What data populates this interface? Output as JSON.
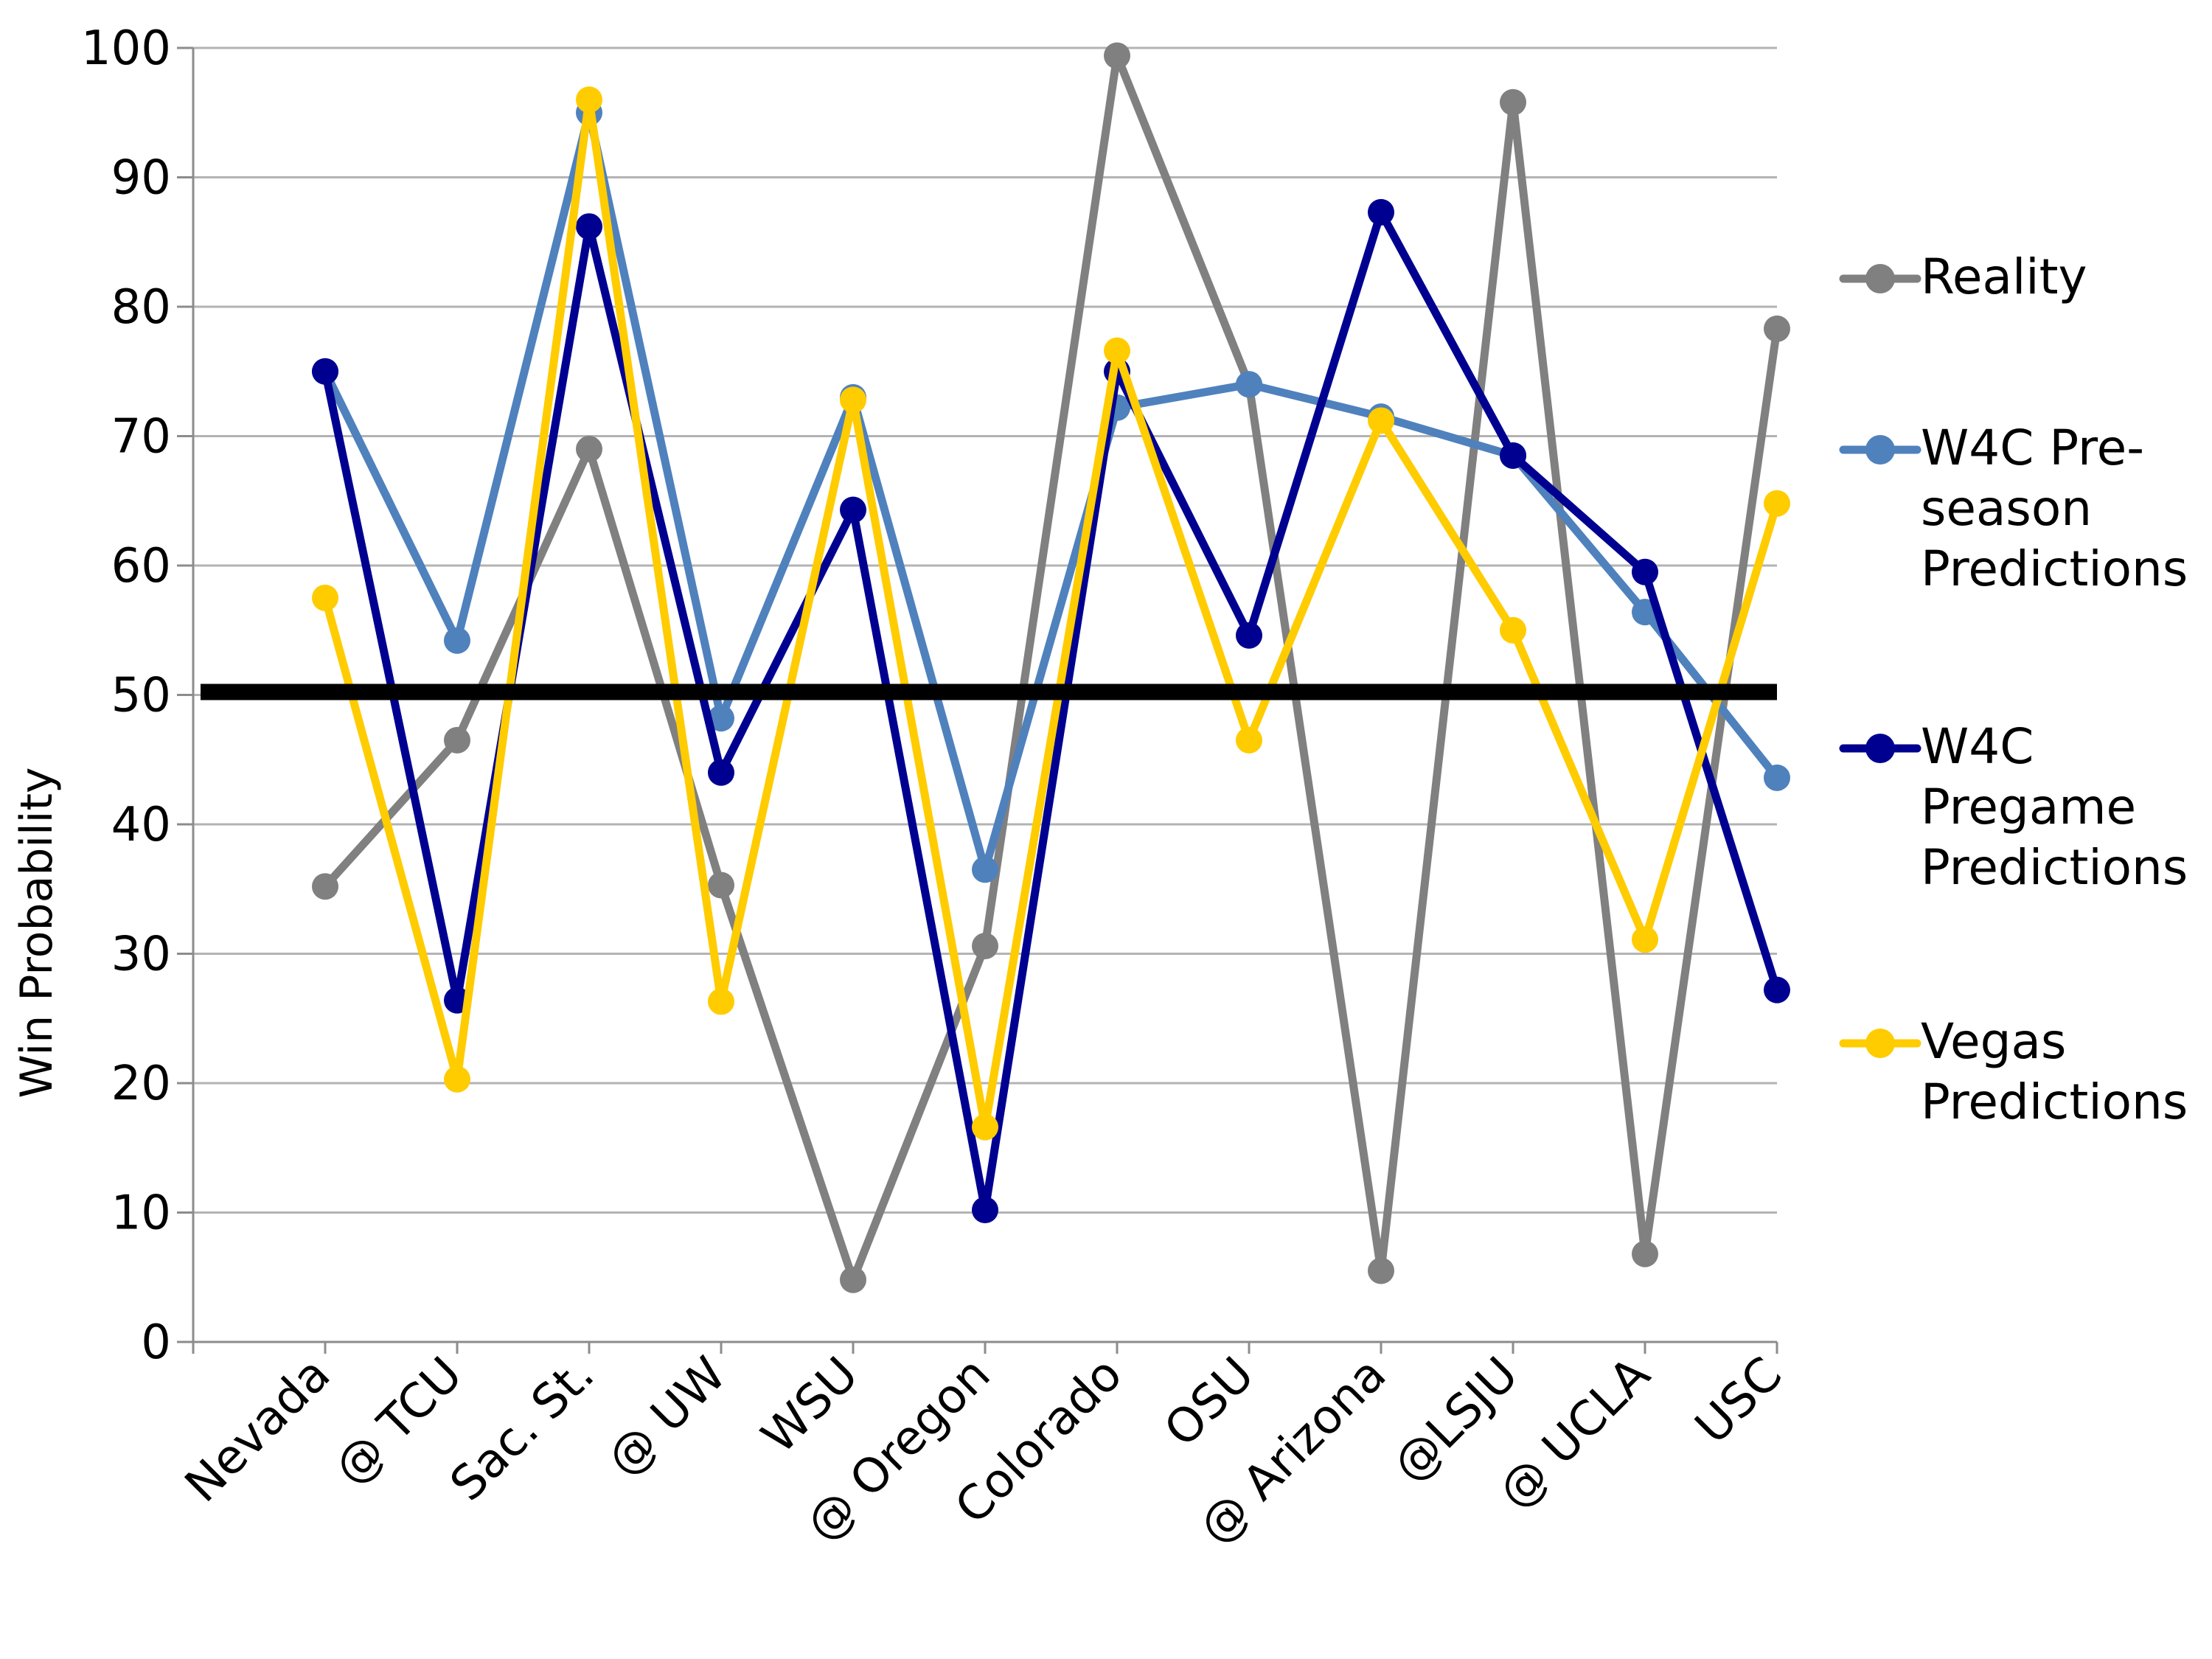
{
  "chart_data": {
    "type": "line",
    "title": "",
    "xlabel": "",
    "ylabel": "Win Probability",
    "ylim": [
      0,
      100
    ],
    "yticks": [
      0,
      10,
      20,
      30,
      40,
      50,
      60,
      70,
      80,
      90,
      100
    ],
    "ytick_labels": [
      "0",
      "10",
      "20",
      "30",
      "40",
      "50",
      "60",
      "70",
      "80",
      "90",
      "100"
    ],
    "grid": true,
    "legend_position": "right",
    "reference_line": {
      "value": 50,
      "color": "#000000"
    },
    "categories": [
      "Nevada",
      "@ TCU",
      "Sac. St.",
      "@ UW",
      "WSU",
      "@ Oregon",
      "Colorado",
      "OSU",
      "@ Arizona",
      "@LSJU",
      "@ UCLA",
      "USC"
    ],
    "series": [
      {
        "name": "Reality",
        "legend_lines": [
          "Reality"
        ],
        "color": "#808080",
        "values": [
          35.2,
          46.5,
          69,
          35.3,
          4.8,
          30.6,
          99.4,
          74,
          5.5,
          95.8,
          6.8,
          78.3
        ]
      },
      {
        "name": "W4C Pre-season Predictions",
        "legend_lines": [
          "W4C Pre-",
          "season",
          "Predictions"
        ],
        "color": "#4f81bd",
        "values": [
          75,
          54.2,
          95,
          48.2,
          73,
          36.5,
          72.2,
          74,
          71.5,
          68.5,
          56.4,
          43.6
        ]
      },
      {
        "name": "W4C Pregame Predictions",
        "legend_lines": [
          "W4C",
          "Pregame",
          "Predictions"
        ],
        "color": "#000090",
        "values": [
          75,
          26.4,
          86.2,
          44,
          64.3,
          10.2,
          75,
          54.6,
          87.3,
          68.5,
          59.5,
          27.2
        ]
      },
      {
        "name": "Vegas Predictions",
        "legend_lines": [
          "Vegas",
          "Predictions"
        ],
        "color": "#ffcc00",
        "values": [
          57.5,
          20.3,
          96,
          26.3,
          72.8,
          16.6,
          76.6,
          46.5,
          71.2,
          55,
          31.1,
          64.8
        ]
      }
    ]
  }
}
